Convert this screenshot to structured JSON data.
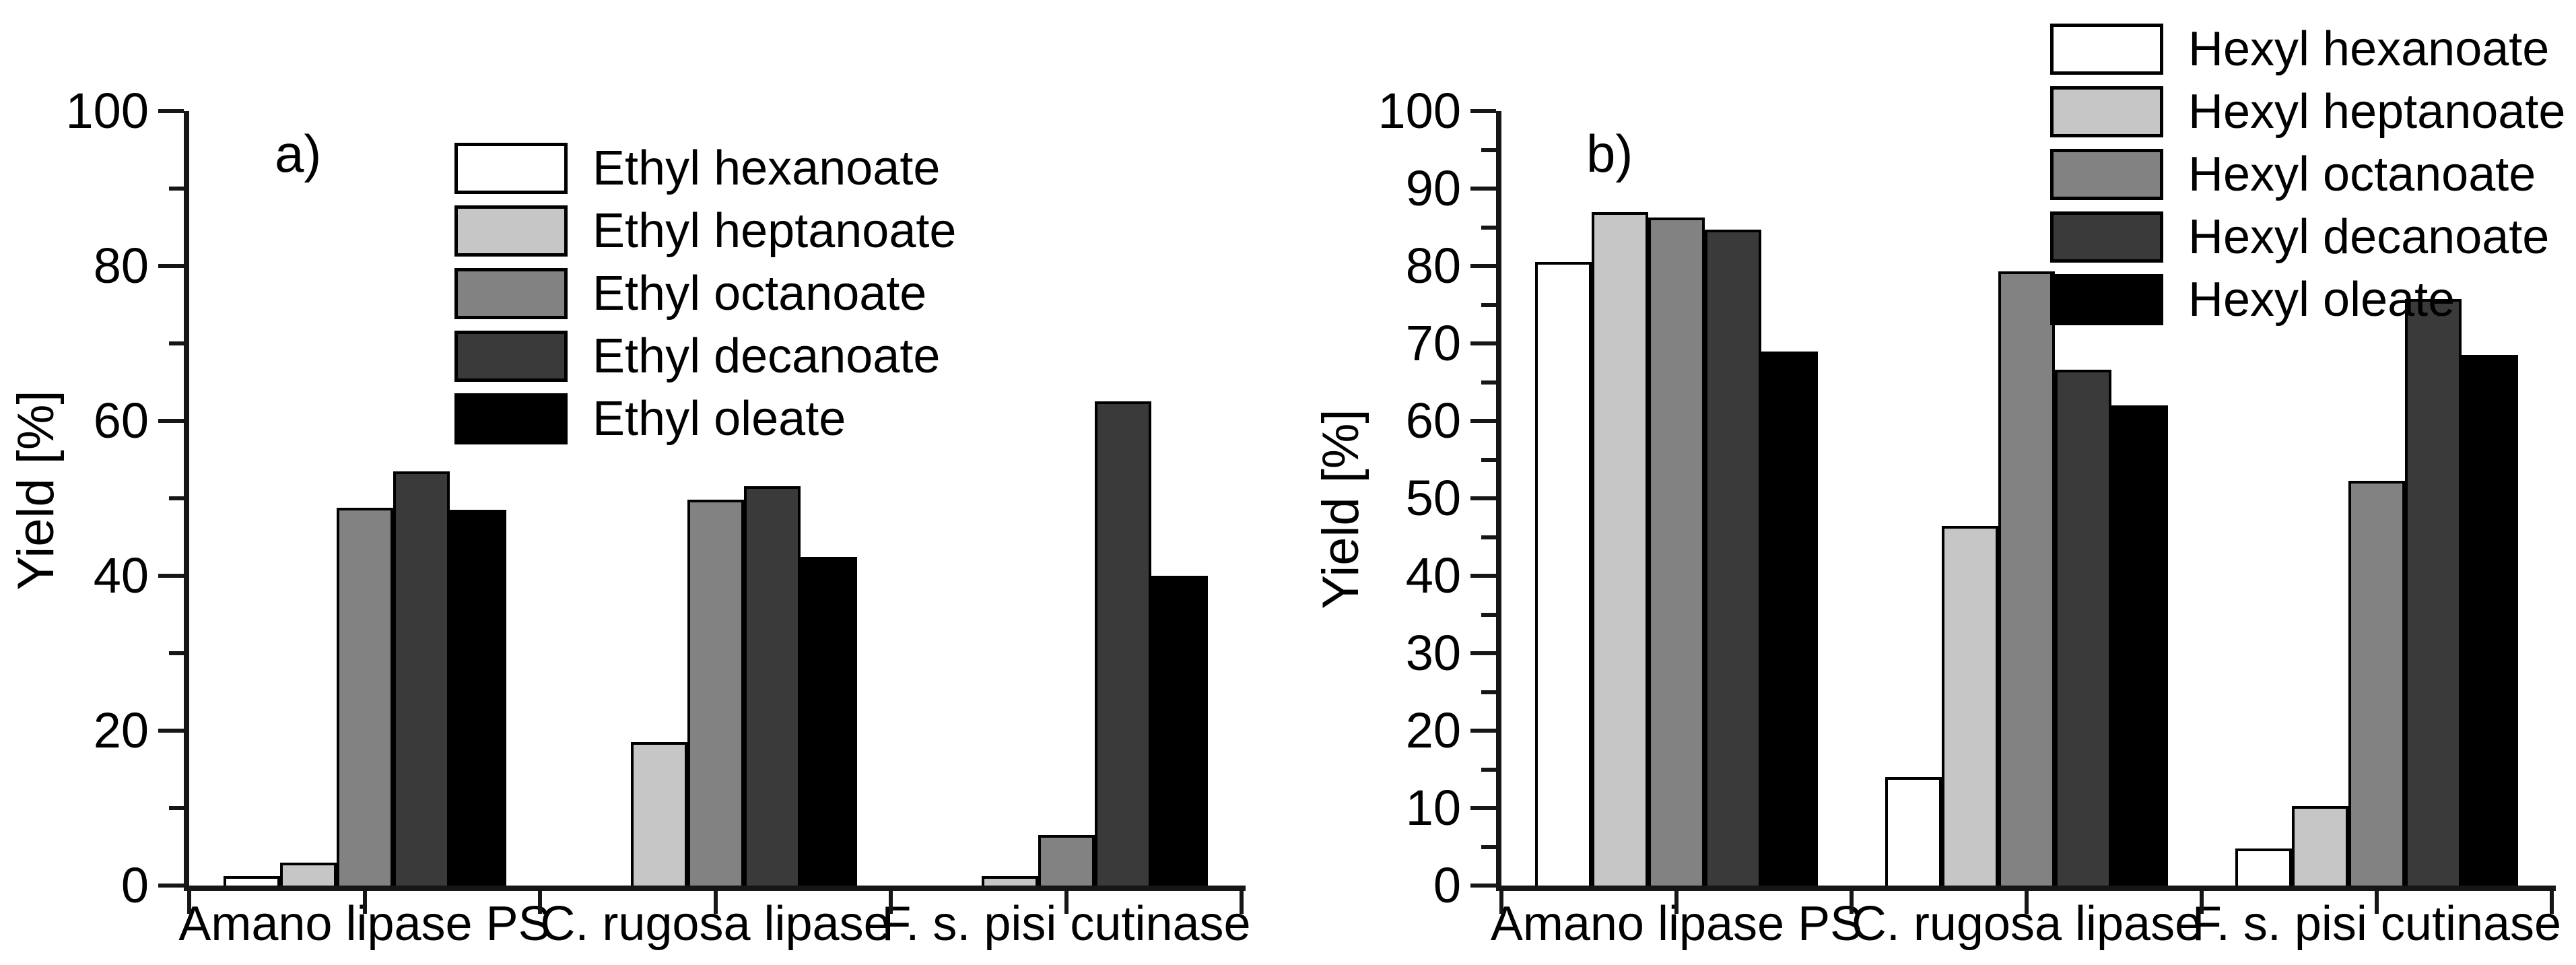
{
  "figure_title": "",
  "chart_data": [
    {
      "type": "bar",
      "panel_label": "a)",
      "ylabel": "Yield [%]",
      "ylim": [
        0,
        100
      ],
      "ytick_label_step": 20,
      "ytick_major_step": 20,
      "ytick_minor_step": 10,
      "grid": false,
      "legend_position": "upper-left-inside",
      "categories": [
        "Amano lipase PS",
        "C. rugosa lipase",
        "F. s. pisi cutinase"
      ],
      "series": [
        {
          "name": "Ethyl hexanoate",
          "color": "#ffffff",
          "values": [
            1.2,
            0.0,
            0.0
          ]
        },
        {
          "name": "Ethyl heptanoate",
          "color": "#c6c6c6",
          "values": [
            3.0,
            18.5,
            1.2
          ]
        },
        {
          "name": "Ethyl octanoate",
          "color": "#828282",
          "values": [
            48.8,
            49.8,
            6.5
          ]
        },
        {
          "name": "Ethyl decanoate",
          "color": "#3a3a3a",
          "values": [
            53.5,
            51.6,
            62.5
          ]
        },
        {
          "name": "Ethyl oleate",
          "color": "#000000",
          "values": [
            48.5,
            42.4,
            40.0
          ]
        }
      ]
    },
    {
      "type": "bar",
      "panel_label": "b)",
      "ylabel": "Yield [%]",
      "ylim": [
        0,
        100
      ],
      "ytick_label_step": 10,
      "ytick_major_step": 10,
      "ytick_minor_step": 5,
      "grid": false,
      "legend_position": "upper-right",
      "categories": [
        "Amano lipase PS",
        "C. rugosa lipase",
        "F. s. pisi cutinase"
      ],
      "series": [
        {
          "name": "Hexyl hexanoate",
          "color": "#ffffff",
          "values": [
            80.5,
            14.0,
            4.8
          ]
        },
        {
          "name": "Hexyl heptanoate",
          "color": "#c6c6c6",
          "values": [
            87.0,
            46.4,
            10.3
          ]
        },
        {
          "name": "Hexyl octanoate",
          "color": "#828282",
          "values": [
            86.3,
            79.3,
            52.3
          ]
        },
        {
          "name": "Hexyl decanoate",
          "color": "#3a3a3a",
          "values": [
            84.7,
            66.6,
            75.7
          ]
        },
        {
          "name": "Hexyl oleate",
          "color": "#000000",
          "values": [
            69.0,
            62.0,
            68.5
          ]
        }
      ]
    }
  ]
}
